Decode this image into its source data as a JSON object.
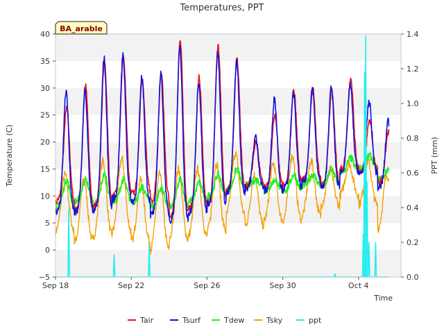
{
  "chart_data": {
    "type": "line",
    "title": "Temperatures, PPT",
    "xlabel": "Time",
    "ylabel": "Temperature (C)",
    "y2label": "PPT (mm)",
    "badge": "BA_arable",
    "x_ticks": [
      "Sep 18",
      "Sep 22",
      "Sep 26",
      "Sep 30",
      "Oct 4"
    ],
    "y_ticks": [
      "−5",
      "0",
      "5",
      "10",
      "15",
      "20",
      "25",
      "30",
      "35",
      "40"
    ],
    "y2_ticks": [
      "0.0",
      "0.2",
      "0.4",
      "0.6",
      "0.8",
      "1.0",
      "1.2",
      "1.4"
    ],
    "x_range_days": [
      0,
      17.6
    ],
    "ylim": [
      -5,
      40
    ],
    "y2lim": [
      0,
      1.4
    ],
    "grid": "horizontal bands",
    "legend_position": "bottom",
    "series": [
      {
        "name": "Tair",
        "color": "#ee1111",
        "axis": "left",
        "maxima": [
          26.5,
          30.5,
          35.0,
          36.0,
          31.5,
          33.0,
          39.0,
          32.0,
          38.0,
          35.5,
          20.0,
          25.0,
          29.5,
          30.0,
          29.5,
          32.0,
          24.0,
          22.0
        ],
        "minima": [
          9.0,
          7.5,
          8.0,
          10.0,
          10.5,
          9.0,
          6.0,
          7.5,
          9.0,
          11.0,
          12.0,
          11.5,
          12.0,
          13.0,
          12.0,
          15.0,
          14.5,
          12.5
        ]
      },
      {
        "name": "Tsurf",
        "color": "#1111dd",
        "axis": "left",
        "maxima": [
          29.5,
          29.5,
          35.5,
          36.0,
          32.0,
          32.5,
          37.5,
          31.0,
          36.5,
          35.0,
          21.0,
          28.0,
          29.0,
          30.0,
          30.0,
          30.5,
          27.5,
          24.0
        ],
        "minima": [
          7.0,
          7.0,
          7.5,
          9.5,
          9.0,
          6.5,
          5.5,
          7.0,
          8.5,
          10.5,
          11.5,
          11.0,
          11.5,
          12.5,
          11.5,
          14.5,
          14.0,
          11.5
        ]
      },
      {
        "name": "Tdew",
        "color": "#22ee22",
        "axis": "left",
        "maxima": [
          13.0,
          13.0,
          14.0,
          13.0,
          11.5,
          11.5,
          13.0,
          12.5,
          14.0,
          15.0,
          13.0,
          13.0,
          14.0,
          14.0,
          15.0,
          17.0,
          17.5,
          15.0
        ],
        "minima": [
          8.0,
          9.0,
          8.5,
          9.0,
          9.0,
          8.0,
          8.0,
          9.0,
          10.0,
          11.0,
          12.0,
          11.0,
          11.0,
          12.0,
          12.0,
          14.5,
          15.0,
          13.0
        ]
      },
      {
        "name": "Tsky",
        "color": "#f5a000",
        "axis": "left",
        "maxima": [
          14.0,
          13.0,
          16.5,
          17.0,
          13.0,
          14.0,
          15.0,
          15.0,
          16.0,
          18.0,
          14.0,
          16.0,
          17.5,
          16.5,
          15.0,
          16.0,
          16.5,
          14.0
        ],
        "minima": [
          3.0,
          1.0,
          2.0,
          3.0,
          1.0,
          -0.5,
          1.5,
          2.0,
          3.0,
          6.0,
          4.0,
          5.0,
          5.0,
          6.0,
          8.0,
          10.0,
          8.0,
          3.5
        ]
      },
      {
        "name": "ppt",
        "color": "#22eeee",
        "axis": "right",
        "events_day": [
          0.7,
          3.1,
          4.95,
          14.75,
          16.25,
          16.32,
          16.38,
          16.45,
          16.55,
          16.9
        ],
        "events_mm": [
          0.39,
          0.13,
          0.19,
          0.02,
          0.25,
          1.18,
          1.39,
          0.55,
          0.2,
          0.2
        ]
      }
    ]
  }
}
